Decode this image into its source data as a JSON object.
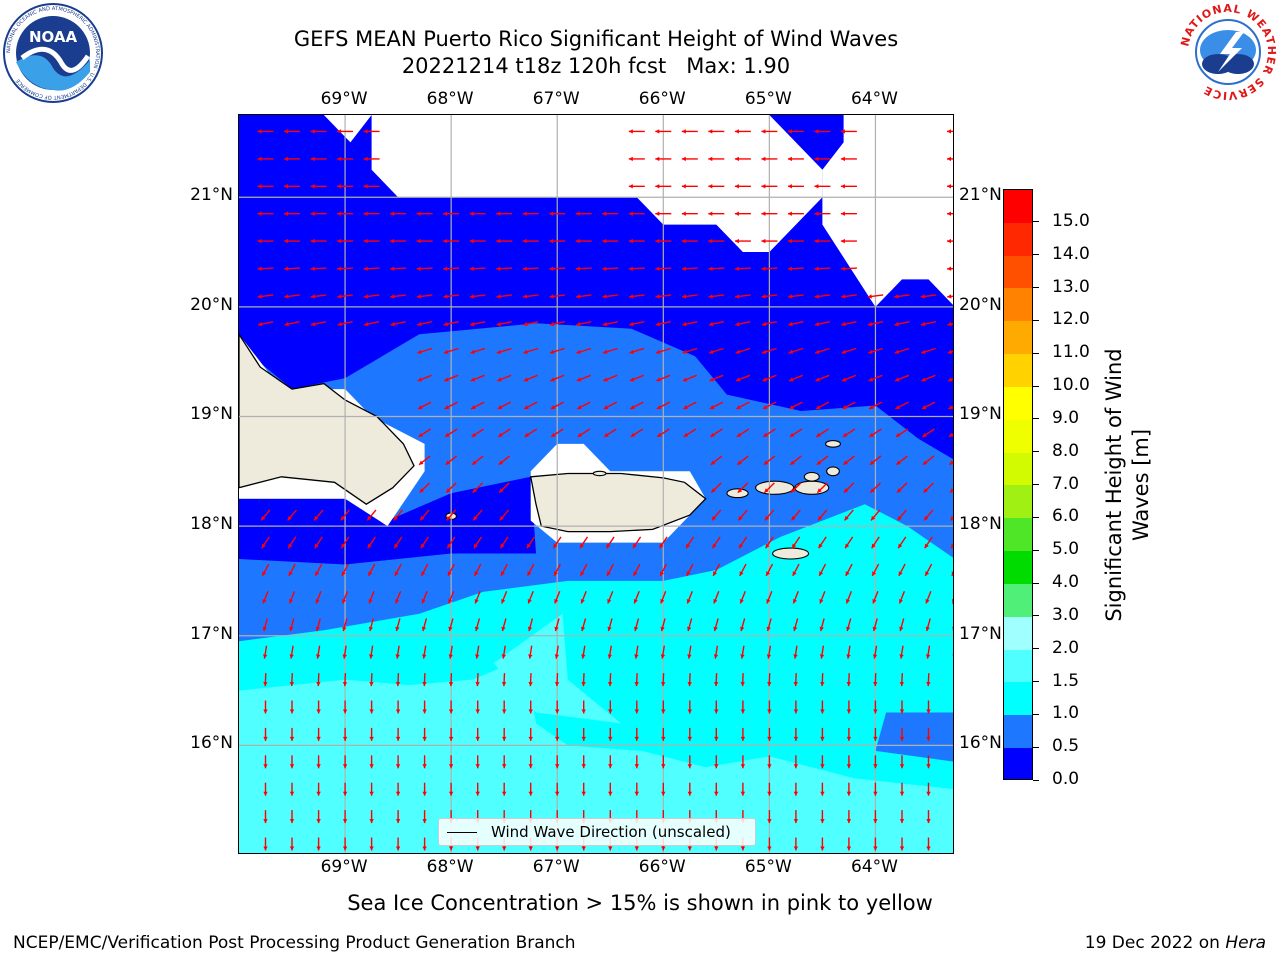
{
  "header": {
    "title_line1": "GEFS MEAN Puerto Rico Significant Height of Wind Waves",
    "title_line2": "20221214 t18z 120h fcst   Max: 1.90"
  },
  "logos": {
    "left": "NOAA",
    "left_ring": "NATIONAL OCEANIC AND ATMOSPHERIC ADMINISTRATION · U.S. DEPARTMENT OF COMMERCE",
    "right_ring": "NATIONAL WEATHER SERVICE"
  },
  "map": {
    "lon_labels": [
      "69°W",
      "68°W",
      "67°W",
      "66°W",
      "65°W",
      "64°W"
    ],
    "lat_labels": [
      "21°N",
      "20°N",
      "19°N",
      "18°N",
      "17°N",
      "16°N"
    ],
    "lon_range": [
      -70.0,
      -63.25
    ],
    "lat_range": [
      15.0,
      21.75
    ],
    "legend_label": "Wind Wave Direction (unscaled)",
    "land_color": "#efebdc",
    "arrow_color": "#ff0000"
  },
  "colorbar": {
    "label_line1": "Significant Height of Wind",
    "label_line2": "Waves [m]",
    "ticks": [
      "0.0",
      "0.5",
      "1.0",
      "1.5",
      "2.0",
      "3.0",
      "4.0",
      "5.0",
      "6.0",
      "7.0",
      "8.0",
      "9.0",
      "10.0",
      "11.0",
      "12.0",
      "13.0",
      "14.0",
      "15.0"
    ],
    "colors": [
      "#0000ff",
      "#1e78ff",
      "#00ffff",
      "#50ffff",
      "#a0ffff",
      "#50f078",
      "#00dc00",
      "#50e628",
      "#a0f014",
      "#d2fa00",
      "#f0ff00",
      "#ffff00",
      "#ffd200",
      "#ffaa00",
      "#ff8200",
      "#ff5000",
      "#ff2800",
      "#ff0000"
    ]
  },
  "caption": "Sea Ice Concentration > 15% is shown in pink to yellow",
  "footer": {
    "left": "NCEP/EMC/Verification Post Processing Product Generation Branch",
    "right_date": "19 Dec 2022 on ",
    "right_machine": "Hera"
  }
}
